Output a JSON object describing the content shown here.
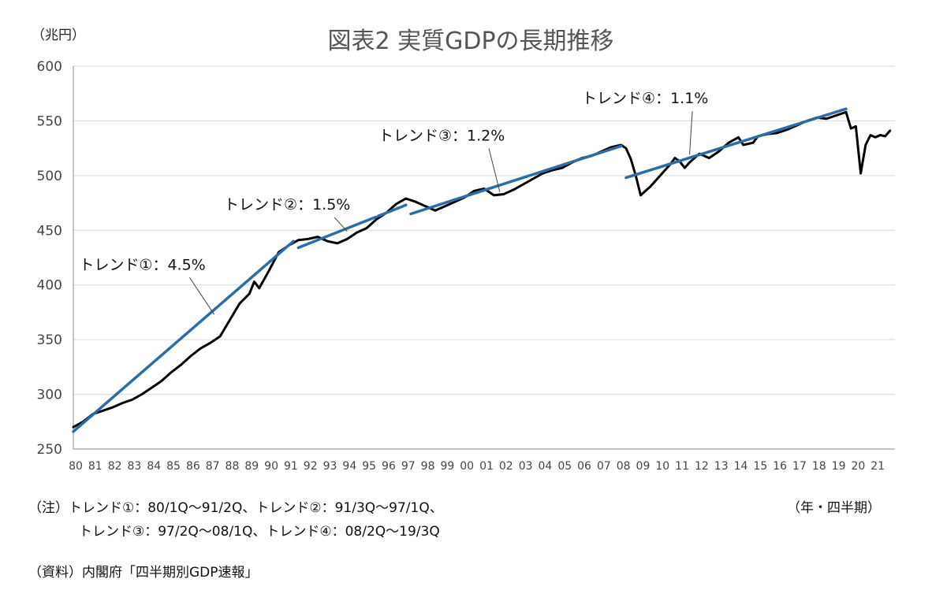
{
  "chart_data": {
    "type": "line",
    "title": "図表2 実質GDPの長期推移",
    "ylabel": "（兆円）",
    "xlabel": "（年・四半期）",
    "ylim": [
      250,
      600
    ],
    "yticks": [
      250,
      300,
      350,
      400,
      450,
      500,
      550,
      600
    ],
    "grid": true,
    "x_tick_labels": [
      "80",
      "81",
      "82",
      "83",
      "84",
      "85",
      "86",
      "87",
      "88",
      "89",
      "90",
      "91",
      "92",
      "93",
      "94",
      "95",
      "96",
      "97",
      "98",
      "99",
      "00",
      "01",
      "02",
      "03",
      "04",
      "05",
      "06",
      "07",
      "08",
      "09",
      "10",
      "11",
      "12",
      "13",
      "14",
      "15",
      "16",
      "17",
      "18",
      "19",
      "20",
      "21"
    ],
    "series": [
      {
        "name": "",
        "color": "#000000",
        "points": [
          [
            1980.0,
            270
          ],
          [
            1980.5,
            275
          ],
          [
            1981.0,
            282
          ],
          [
            1981.5,
            285
          ],
          [
            1982.0,
            288
          ],
          [
            1982.5,
            292
          ],
          [
            1983.0,
            295
          ],
          [
            1983.5,
            300
          ],
          [
            1984.0,
            306
          ],
          [
            1984.5,
            312
          ],
          [
            1985.0,
            320
          ],
          [
            1985.5,
            327
          ],
          [
            1986.0,
            335
          ],
          [
            1986.5,
            342
          ],
          [
            1987.0,
            347
          ],
          [
            1987.5,
            353
          ],
          [
            1988.0,
            368
          ],
          [
            1988.5,
            383
          ],
          [
            1989.0,
            392
          ],
          [
            1989.25,
            403
          ],
          [
            1989.5,
            397
          ],
          [
            1990.0,
            413
          ],
          [
            1990.5,
            430
          ],
          [
            1991.0,
            436
          ],
          [
            1991.5,
            441
          ],
          [
            1992.0,
            442
          ],
          [
            1992.5,
            444
          ],
          [
            1993.0,
            440
          ],
          [
            1993.5,
            438
          ],
          [
            1994.0,
            442
          ],
          [
            1994.5,
            448
          ],
          [
            1995.0,
            452
          ],
          [
            1995.5,
            460
          ],
          [
            1996.0,
            466
          ],
          [
            1996.5,
            474
          ],
          [
            1997.0,
            479
          ],
          [
            1997.5,
            476
          ],
          [
            1998.0,
            472
          ],
          [
            1998.5,
            468
          ],
          [
            1999.0,
            472
          ],
          [
            1999.5,
            476
          ],
          [
            2000.0,
            480
          ],
          [
            2000.5,
            486
          ],
          [
            2001.0,
            488
          ],
          [
            2001.5,
            482
          ],
          [
            2002.0,
            483
          ],
          [
            2002.5,
            487
          ],
          [
            2003.0,
            492
          ],
          [
            2003.5,
            497
          ],
          [
            2004.0,
            502
          ],
          [
            2004.5,
            505
          ],
          [
            2005.0,
            507
          ],
          [
            2005.5,
            512
          ],
          [
            2006.0,
            516
          ],
          [
            2006.5,
            518
          ],
          [
            2007.0,
            522
          ],
          [
            2007.5,
            526
          ],
          [
            2008.0,
            528
          ],
          [
            2008.25,
            525
          ],
          [
            2008.5,
            515
          ],
          [
            2008.75,
            500
          ],
          [
            2009.0,
            482
          ],
          [
            2009.5,
            490
          ],
          [
            2010.0,
            500
          ],
          [
            2010.5,
            510
          ],
          [
            2010.75,
            516
          ],
          [
            2011.0,
            513
          ],
          [
            2011.25,
            507
          ],
          [
            2011.5,
            512
          ],
          [
            2012.0,
            520
          ],
          [
            2012.5,
            516
          ],
          [
            2013.0,
            522
          ],
          [
            2013.5,
            530
          ],
          [
            2014.0,
            535
          ],
          [
            2014.25,
            528
          ],
          [
            2014.75,
            530
          ],
          [
            2015.0,
            536
          ],
          [
            2015.5,
            538
          ],
          [
            2016.0,
            539
          ],
          [
            2016.5,
            542
          ],
          [
            2017.0,
            546
          ],
          [
            2017.5,
            550
          ],
          [
            2018.0,
            553
          ],
          [
            2018.5,
            552
          ],
          [
            2019.0,
            555
          ],
          [
            2019.5,
            558
          ],
          [
            2019.75,
            543
          ],
          [
            2020.0,
            545
          ],
          [
            2020.25,
            502
          ],
          [
            2020.5,
            528
          ],
          [
            2020.75,
            537
          ],
          [
            2021.0,
            535
          ],
          [
            2021.25,
            537
          ],
          [
            2021.5,
            536
          ],
          [
            2021.75,
            541
          ]
        ]
      },
      {
        "name": "トレンド①",
        "color": "#2e6da4",
        "points": [
          [
            1980.0,
            266
          ],
          [
            1991.25,
            440
          ]
        ]
      },
      {
        "name": "トレンド②",
        "color": "#2e6da4",
        "points": [
          [
            1991.5,
            434
          ],
          [
            1997.0,
            473
          ]
        ]
      },
      {
        "name": "トレンド③",
        "color": "#2e6da4",
        "points": [
          [
            1997.25,
            465
          ],
          [
            2008.0,
            527
          ]
        ]
      },
      {
        "name": "トレンド④",
        "color": "#2e6da4",
        "points": [
          [
            2008.25,
            498
          ],
          [
            2019.5,
            561
          ]
        ]
      }
    ],
    "annotations": [
      {
        "text": "トレンド①：4.5%",
        "x": 1980.3,
        "y": 414,
        "arrow_to": [
          1987.2,
          373
        ]
      },
      {
        "text": "トレンド②：1.5%",
        "x": 1987.7,
        "y": 469,
        "arrow_to": [
          1994.0,
          449
        ]
      },
      {
        "text": "トレンド③：1.2%",
        "x": 1995.6,
        "y": 532,
        "arrow_to": [
          2001.8,
          485
        ]
      },
      {
        "text": "トレンド④：1.1%",
        "x": 2006.0,
        "y": 566,
        "arrow_to": [
          2011.5,
          519
        ]
      }
    ]
  },
  "notes": {
    "line1": "（注）トレンド①：80/1Q～91/2Q、トレンド②：91/3Q～97/1Q、",
    "line2": "トレンド③：97/2Q～08/1Q、トレンド④：08/2Q～19/3Q",
    "source": "（資料）内閣府「四半期別GDP速報」"
  }
}
